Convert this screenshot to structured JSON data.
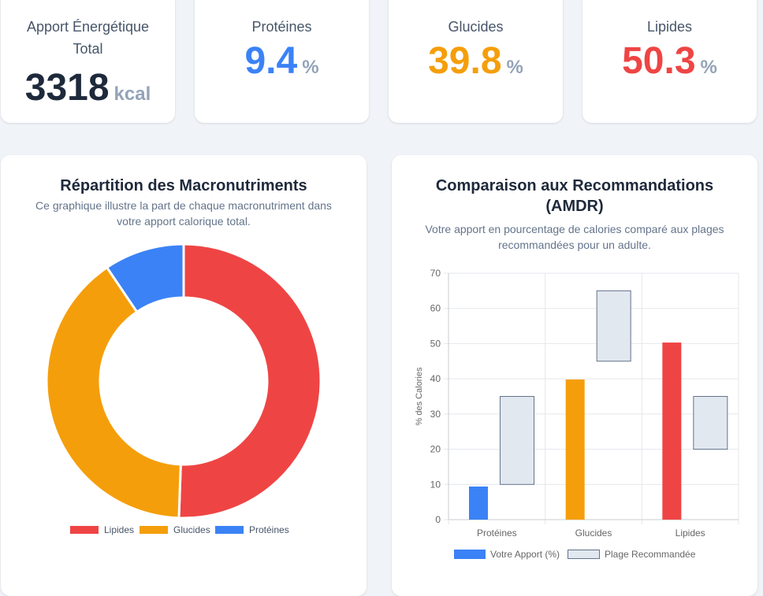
{
  "stats": {
    "energy": {
      "label": "Apport Énergétique Total",
      "value": "3318",
      "unit": "kcal",
      "color": "#1e293b"
    },
    "proteins": {
      "label": "Protéines",
      "value": "9.4",
      "unit": "%",
      "color": "#3b82f6"
    },
    "carbs": {
      "label": "Glucides",
      "value": "39.8",
      "unit": "%",
      "color": "#f59e0b"
    },
    "fats": {
      "label": "Lipides",
      "value": "50.3",
      "unit": "%",
      "color": "#ef4444"
    }
  },
  "donut_card": {
    "title": "Répartition des Macronutriments",
    "subtitle": "Ce graphique illustre la part de chaque macronutriment dans votre apport calorique total."
  },
  "bar_card": {
    "title": "Comparaison aux Recommandations (AMDR)",
    "subtitle": "Votre apport en pourcentage de calories comparé aux plages recommandées pour un adulte."
  },
  "chart_data": [
    {
      "type": "pie",
      "variant": "doughnut",
      "labels": [
        "Lipides",
        "Glucides",
        "Protéines"
      ],
      "values": [
        50.3,
        39.8,
        9.4
      ],
      "colors": [
        "#ef4444",
        "#f59e0b",
        "#3b82f6"
      ],
      "legend": "bottom"
    },
    {
      "type": "bar",
      "categories": [
        "Protéines",
        "Glucides",
        "Lipides"
      ],
      "series": [
        {
          "name": "Votre Apport (%)",
          "values": [
            9.4,
            39.8,
            50.3
          ],
          "color": "#3b82f6",
          "bar_colors": [
            "#3b82f6",
            "#f59e0b",
            "#ef4444"
          ]
        },
        {
          "name": "Plage Recommandée",
          "ranges": [
            [
              10,
              35
            ],
            [
              45,
              65
            ],
            [
              20,
              35
            ]
          ],
          "color": "#e2e8f0",
          "border": "#64748b"
        }
      ],
      "ylabel": "% des Calories",
      "xlabel": "",
      "ylim": [
        0,
        70
      ],
      "yticks": [
        0,
        10,
        20,
        30,
        40,
        50,
        60,
        70
      ],
      "grid": true,
      "legend": "bottom"
    }
  ]
}
